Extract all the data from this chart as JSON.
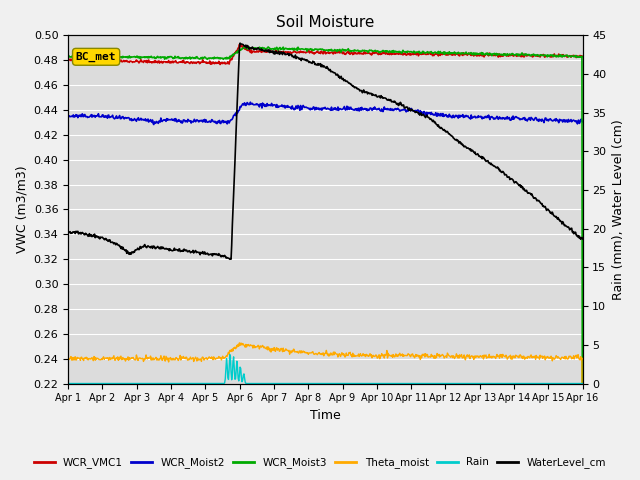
{
  "title": "Soil Moisture",
  "xlabel": "Time",
  "ylabel_left": "VWC (m3/m3)",
  "ylabel_right": "Rain (mm), Water Level (cm)",
  "xlim": [
    0,
    15
  ],
  "ylim_left": [
    0.22,
    0.5
  ],
  "ylim_right": [
    0,
    45
  ],
  "xtick_labels": [
    "Apr 1",
    "Apr 2",
    "Apr 3",
    "Apr 4",
    "Apr 5",
    "Apr 6",
    "Apr 7",
    "Apr 8",
    "Apr 9",
    "Apr 10",
    "Apr 11",
    "Apr 12",
    "Apr 13",
    "Apr 14",
    "Apr 15",
    "Apr 16"
  ],
  "plot_bg_color": "#dcdcdc",
  "fig_bg_color": "#f0f0f0",
  "annotation_text": "BC_met",
  "annotation_box_color": "#ffd700",
  "series": {
    "WCR_VMC1": {
      "color": "#cc0000",
      "lw": 1.2
    },
    "WCR_Moist2": {
      "color": "#0000cc",
      "lw": 1.2
    },
    "WCR_Moist3": {
      "color": "#00aa00",
      "lw": 1.2
    },
    "Theta_moist": {
      "color": "#ffaa00",
      "lw": 1.0
    },
    "Rain": {
      "color": "#00cccc",
      "lw": 1.0
    },
    "WaterLevel_cm": {
      "color": "#000000",
      "lw": 1.2
    }
  }
}
